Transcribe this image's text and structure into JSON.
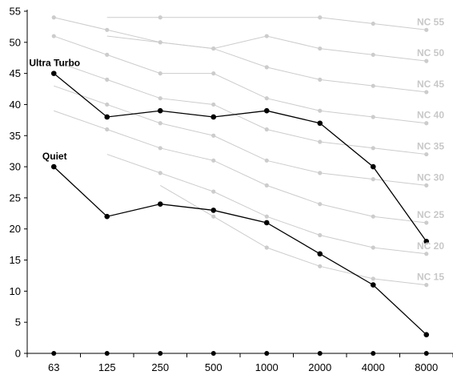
{
  "chart_data": {
    "type": "line",
    "title": "",
    "xlabel": "",
    "ylabel": "",
    "categories": [
      "63",
      "125",
      "250",
      "500",
      "1000",
      "2000",
      "4000",
      "8000"
    ],
    "y_ticks": [
      0,
      5,
      10,
      15,
      20,
      25,
      30,
      35,
      40,
      45,
      50,
      55
    ],
    "ylim": [
      0,
      55
    ],
    "grid": false,
    "series": [
      {
        "name": "Ultra Turbo",
        "values": [
          45,
          38,
          39,
          38,
          39,
          37,
          30,
          18
        ],
        "color": "#000000"
      },
      {
        "name": "Quiet",
        "values": [
          30,
          22,
          24,
          23,
          21,
          16,
          11,
          3
        ],
        "color": "#000000"
      }
    ],
    "reference_curves": {
      "color": "#cccccc",
      "curves": [
        {
          "name": "NC 55",
          "values": [
            null,
            null,
            54,
            null,
            null,
            54,
            53,
            52
          ]
        },
        {
          "name": "NC 50",
          "values": [
            null,
            null,
            50,
            49,
            51,
            49,
            48,
            47
          ]
        },
        {
          "name": "NC 45",
          "values": [
            54,
            52,
            50,
            49,
            46,
            44,
            43,
            42
          ]
        },
        {
          "name": "NC 40",
          "values": [
            51,
            48,
            45,
            45,
            41,
            39,
            38,
            37
          ]
        },
        {
          "name": "NC 35",
          "values": [
            null,
            44,
            41,
            40,
            36,
            34,
            33,
            32
          ]
        },
        {
          "name": "NC 30",
          "values": [
            null,
            40,
            37,
            35,
            31,
            29,
            28,
            27
          ]
        },
        {
          "name": "NC 25",
          "values": [
            null,
            36,
            33,
            31,
            27,
            24,
            22,
            21
          ]
        },
        {
          "name": "NC 20",
          "values": [
            null,
            null,
            29,
            26,
            22,
            19,
            17,
            16
          ]
        },
        {
          "name": "NC 15",
          "values": [
            null,
            null,
            null,
            22,
            17,
            14,
            12,
            11
          ]
        }
      ]
    },
    "baseline_markers": true
  }
}
